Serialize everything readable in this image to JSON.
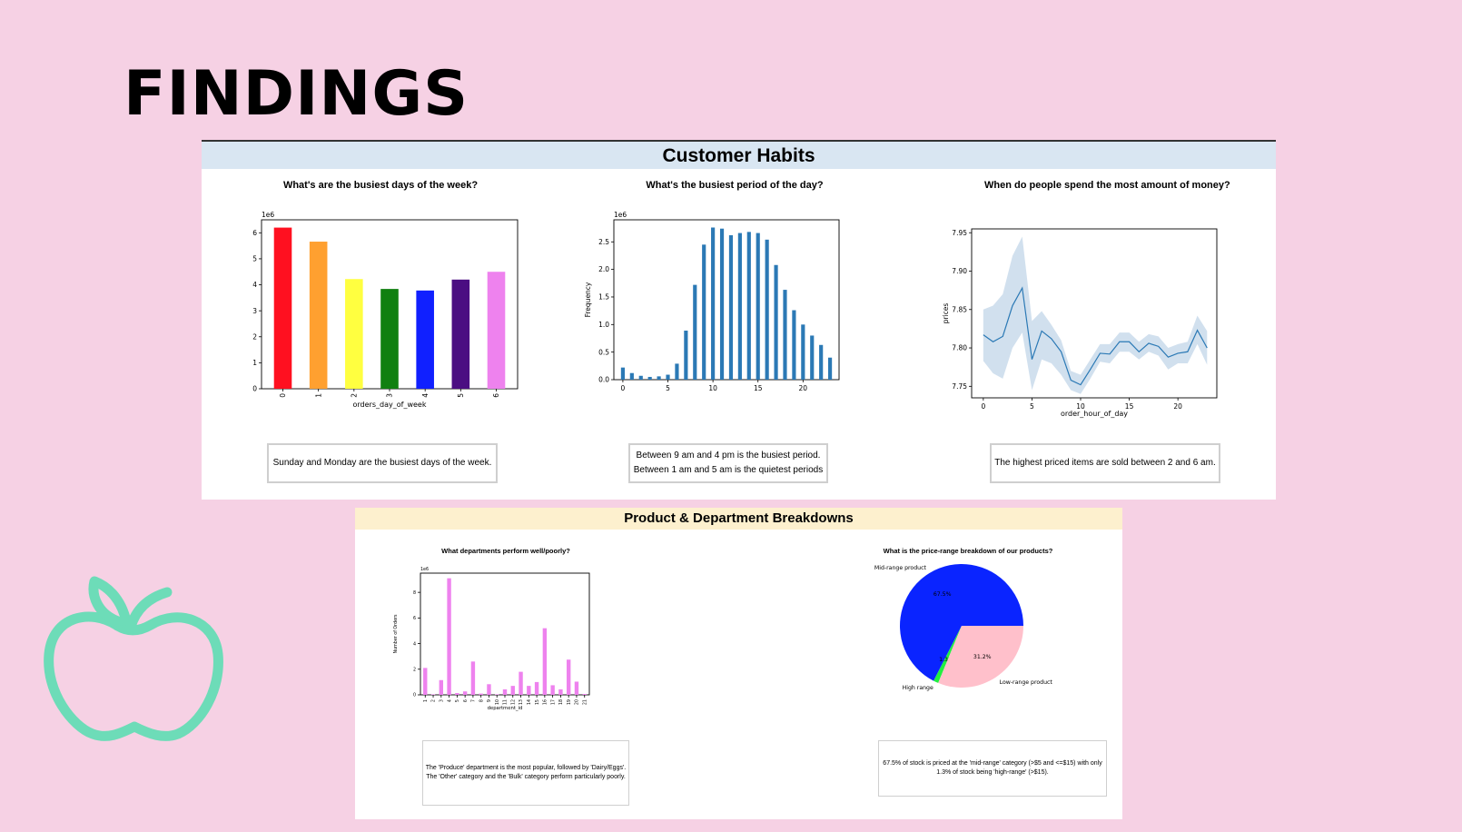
{
  "slide": {
    "title": "FINDINGS"
  },
  "habits": {
    "header": "Customer Habits",
    "days": {
      "title": "What's are the busiest days of the week?",
      "note": "Sunday and Monday are the busiest days of the week."
    },
    "hours": {
      "title": "What's the busiest period of the day?",
      "note_lines": [
        "Between 9 am and 4 pm is the busiest period.",
        "Between 1 am and 5 am is the quietest periods"
      ]
    },
    "spend": {
      "title": "When do people spend the most amount of money?",
      "note": "The highest priced items are sold between 2 and 6 am."
    }
  },
  "products": {
    "header": "Product & Department Breakdowns",
    "departments": {
      "title": "What departments perform well/poorly?",
      "note_lines": [
        "The 'Produce' department is the most popular, followed by 'Dairy/Eggs'.",
        "The 'Other' category and the 'Bulk' category perform particularly poorly."
      ]
    },
    "prices": {
      "title": "What is the price-range breakdown of our products?",
      "note_lines": [
        "67.5% of stock is priced at the 'mid-range' category (>$5 and <=$15) with only",
        "1.3% of stock being 'high-range' (>$15)."
      ]
    }
  },
  "decoration": {
    "icon": "apple-outline-icon",
    "color": "#6ddcb8"
  },
  "chart_data": [
    {
      "id": "days",
      "type": "bar",
      "categories": [
        "0",
        "1",
        "2",
        "3",
        "4",
        "5",
        "6"
      ],
      "values": [
        6.2,
        5.66,
        4.22,
        3.84,
        3.78,
        4.2,
        4.5
      ],
      "colors": [
        "#ff1020",
        "#ffa030",
        "#ffff40",
        "#108010",
        "#1020ff",
        "#4b0e82",
        "#ee82ee"
      ],
      "xlabel": "orders_day_of_week",
      "ylabel": "",
      "multiplier": "1e6",
      "ylim": [
        0,
        6.5
      ],
      "yticks": [
        0,
        1,
        2,
        3,
        4,
        5,
        6
      ],
      "rotate_xticks": true
    },
    {
      "id": "hours",
      "type": "bar",
      "x": [
        0,
        1,
        2,
        3,
        4,
        5,
        6,
        7,
        8,
        9,
        10,
        11,
        12,
        13,
        14,
        15,
        16,
        17,
        18,
        19,
        20,
        21,
        22,
        23
      ],
      "values": [
        0.22,
        0.12,
        0.07,
        0.05,
        0.06,
        0.09,
        0.29,
        0.89,
        1.72,
        2.45,
        2.76,
        2.74,
        2.62,
        2.66,
        2.68,
        2.66,
        2.54,
        2.08,
        1.63,
        1.26,
        1.0,
        0.8,
        0.63,
        0.4
      ],
      "color": "#2b79b5",
      "xlabel": "",
      "ylabel": "Frequency",
      "multiplier": "1e6",
      "xlim": [
        -1,
        24
      ],
      "ylim": [
        0,
        2.9
      ],
      "xticks": [
        0,
        5,
        10,
        15,
        20
      ],
      "yticks": [
        0.0,
        0.5,
        1.0,
        1.5,
        2.0,
        2.5
      ],
      "ytick_labels": [
        "0.0",
        "0.5",
        "1.0",
        "1.5",
        "2.0",
        "2.5"
      ]
    },
    {
      "id": "spend",
      "type": "line",
      "x": [
        0,
        1,
        2,
        3,
        4,
        5,
        6,
        7,
        8,
        9,
        10,
        11,
        12,
        13,
        14,
        15,
        16,
        17,
        18,
        19,
        20,
        21,
        22,
        23
      ],
      "y": [
        7.817,
        7.808,
        7.815,
        7.855,
        7.878,
        7.785,
        7.822,
        7.812,
        7.795,
        7.758,
        7.752,
        7.772,
        7.793,
        7.792,
        7.808,
        7.808,
        7.795,
        7.806,
        7.802,
        7.788,
        7.793,
        7.795,
        7.823,
        7.8
      ],
      "lower": [
        7.783,
        7.767,
        7.76,
        7.8,
        7.82,
        7.745,
        7.785,
        7.78,
        7.765,
        7.745,
        7.74,
        7.76,
        7.782,
        7.78,
        7.795,
        7.795,
        7.785,
        7.795,
        7.79,
        7.772,
        7.78,
        7.78,
        7.805,
        7.778
      ],
      "upper": [
        7.85,
        7.855,
        7.87,
        7.92,
        7.945,
        7.835,
        7.848,
        7.83,
        7.81,
        7.77,
        7.765,
        7.785,
        7.805,
        7.805,
        7.82,
        7.82,
        7.808,
        7.818,
        7.815,
        7.8,
        7.805,
        7.808,
        7.842,
        7.822
      ],
      "color": "#2b79b5",
      "band_color": "#c9dbeb",
      "xlabel": "order_hour_of_day",
      "ylabel": "prices",
      "xlim": [
        -1.2,
        24
      ],
      "ylim": [
        7.735,
        7.955
      ],
      "xticks": [
        0,
        5,
        10,
        15,
        20
      ],
      "yticks": [
        7.75,
        7.8,
        7.85,
        7.9,
        7.95
      ],
      "ytick_labels": [
        "7.75",
        "7.80",
        "7.85",
        "7.90",
        "7.95"
      ]
    },
    {
      "id": "departments",
      "type": "bar",
      "categories": [
        "1",
        "2",
        "3",
        "4",
        "5",
        "6",
        "7",
        "8",
        "9",
        "10",
        "11",
        "12",
        "13",
        "14",
        "15",
        "16",
        "17",
        "18",
        "19",
        "20",
        "21"
      ],
      "values": [
        2.1,
        0.04,
        1.15,
        9.1,
        0.14,
        0.27,
        2.6,
        0.1,
        0.83,
        0.04,
        0.43,
        0.7,
        1.8,
        0.7,
        1.0,
        5.2,
        0.75,
        0.43,
        2.75,
        1.03,
        0.07
      ],
      "color": "#ee82ee",
      "xlabel": "department_id",
      "ylabel": "Number of Orders",
      "multiplier": "1e6",
      "ylim": [
        0,
        9.5
      ],
      "yticks": [
        0,
        2,
        4,
        6,
        8
      ],
      "rotate_xticks": true
    },
    {
      "id": "prices",
      "type": "pie",
      "labels": [
        "Mid-range product",
        "High range",
        "Low-range product"
      ],
      "values": [
        67.5,
        1.3,
        31.2
      ],
      "pct_labels": [
        "67.5%",
        "1.3%",
        "31.2%"
      ],
      "colors": [
        "#0a24ff",
        "#20f040",
        "#ffc0cb"
      ]
    }
  ]
}
